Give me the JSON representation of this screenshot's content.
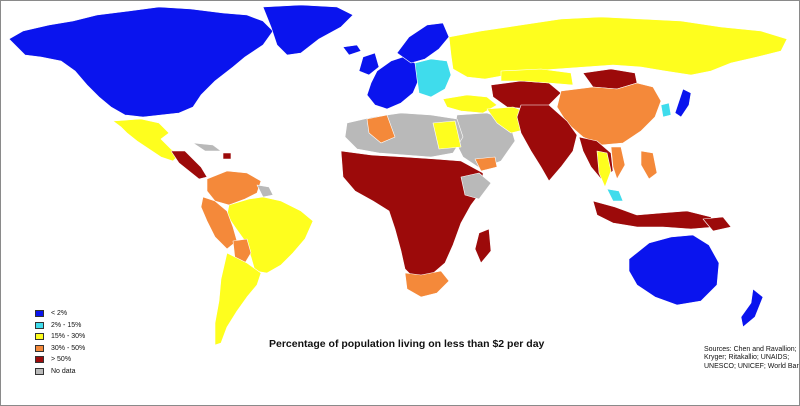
{
  "title": "Percentage of population living on less than $2 per day",
  "legend": [
    {
      "label": "< 2%",
      "color": "#0a14ee"
    },
    {
      "label": "2% - 15%",
      "color": "#3fdcec"
    },
    {
      "label": "15% - 30%",
      "color": "#fefe1e"
    },
    {
      "label": "30% - 50%",
      "color": "#f4893a"
    },
    {
      "label": "> 50%",
      "color": "#9c0a0a"
    },
    {
      "label": "No data",
      "color": "#b9b9b9"
    }
  ],
  "sources": [
    "Sources: Chen and Ravallion;",
    "Kryger; Ritakallio; UNAIDS;",
    "UNESCO; UNICEF; World Bank"
  ]
}
